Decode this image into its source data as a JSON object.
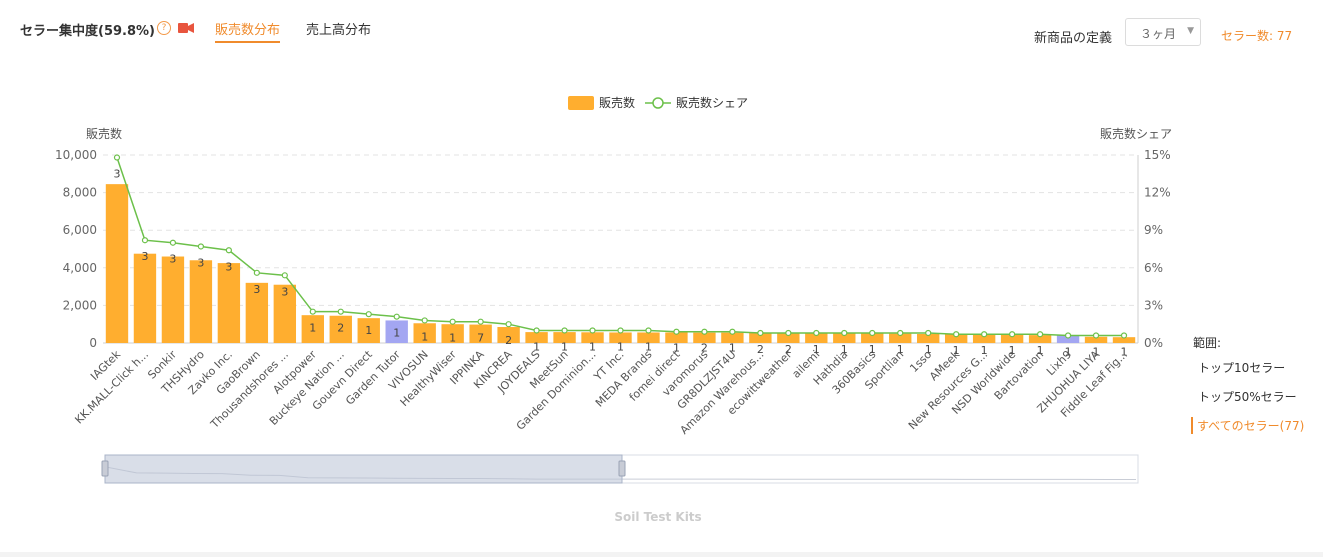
{
  "header": {
    "title": "セラー集中度(59.8%)",
    "help_icon": "question-circle-icon",
    "video_icon": "video-camera-icon",
    "tabs": [
      {
        "label": "販売数分布",
        "active": true
      },
      {
        "label": "売上高分布",
        "active": false
      }
    ],
    "new_product_label": "新商品の定義",
    "new_product_value": "３ヶ月",
    "seller_count": "セラー数: 77"
  },
  "range": {
    "label": "範囲:",
    "options": [
      {
        "label": "トップ10セラー",
        "active": false
      },
      {
        "label": "トップ50%セラー",
        "active": false
      },
      {
        "label": "すべてのセラー(77)",
        "active": true
      }
    ]
  },
  "zoom_caption": "Soil Test Kits",
  "colors": {
    "accent": "#f08b2c",
    "bar": "#ffae2f",
    "bar_highlight": "#a3a6f2",
    "line": "#6cc04a"
  },
  "chart_data": {
    "type": "bar",
    "ylabel": "販売数",
    "y2label": "販売数シェア",
    "ylim": [
      0,
      10000
    ],
    "y2lim": [
      0,
      15
    ],
    "yticks": [
      "0",
      "2,000",
      "4,000",
      "6,000",
      "8,000",
      "10,000"
    ],
    "y2ticks": [
      "0%",
      "3%",
      "6%",
      "9%",
      "12%",
      "15%"
    ],
    "grid": true,
    "legend": {
      "position": "top-center",
      "bar_name": "販売数",
      "line_name": "販売数シェア"
    },
    "categories": [
      "IAGtek",
      "KK.MALL-Click h...",
      "Sonkir",
      "THSHydro",
      "Zavko Inc.",
      "GaoBrown",
      "Thousandshores ...",
      "Alotpower",
      "Buckeye Nation ...",
      "Gouevn Direct",
      "Garden Tutor",
      "VIVOSUN",
      "HealthyWiser",
      "IPPINKA",
      "KINCREA",
      "JOYDEALS",
      "MeetSun",
      "Garden Dominion...",
      "YT Inc.",
      "MEDA Brands",
      "fomei direct",
      "varomorus",
      "GR8DLZJST4U",
      "Amazon Warehous...",
      "ecowittweather",
      "ailemi",
      "Hathdia",
      "360Basics",
      "Sportlian",
      "1sso",
      "AMeek",
      "New Resources G...",
      "NSD Worldwide",
      "Bartovation",
      "Lixh9",
      "ZHUOHUA LIYA",
      "Fiddle Leaf Fig..."
    ],
    "series": [
      {
        "name": "販売数",
        "type": "bar",
        "values": [
          8450,
          4750,
          4600,
          4400,
          4250,
          3200,
          3100,
          1480,
          1450,
          1320,
          1200,
          1050,
          1000,
          980,
          850,
          580,
          580,
          570,
          560,
          560,
          560,
          550,
          550,
          540,
          540,
          530,
          520,
          510,
          500,
          480,
          460,
          450,
          440,
          420,
          410,
          330,
          310
        ]
      },
      {
        "name": "販売数シェア",
        "type": "line",
        "values": [
          14.8,
          8.2,
          8.0,
          7.7,
          7.4,
          5.6,
          5.4,
          2.5,
          2.5,
          2.3,
          2.1,
          1.8,
          1.7,
          1.7,
          1.5,
          1.0,
          1.0,
          1.0,
          1.0,
          1.0,
          0.9,
          0.9,
          0.9,
          0.8,
          0.8,
          0.8,
          0.8,
          0.8,
          0.8,
          0.8,
          0.7,
          0.7,
          0.7,
          0.7,
          0.6,
          0.6,
          0.6
        ]
      }
    ],
    "data_labels": [
      "3",
      "3",
      "3",
      "3",
      "3",
      "3",
      "3",
      "1",
      "2",
      "1",
      "1",
      "1",
      "1",
      "7",
      "2",
      "1",
      "1",
      "1",
      "1",
      "1",
      "1",
      "2",
      "1",
      "2",
      "2",
      "1",
      "1",
      "1",
      "1",
      "1",
      "1",
      "1",
      "1",
      "1",
      "1",
      "1",
      "1"
    ],
    "highlight_categories": [
      "Garden Tutor",
      "Lixh9"
    ]
  }
}
